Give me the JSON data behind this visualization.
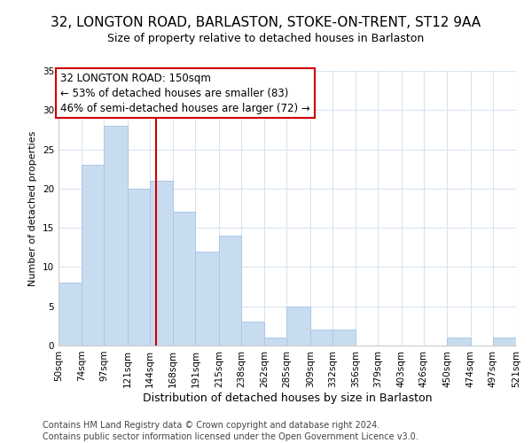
{
  "title": "32, LONGTON ROAD, BARLASTON, STOKE-ON-TRENT, ST12 9AA",
  "subtitle": "Size of property relative to detached houses in Barlaston",
  "xlabel": "Distribution of detached houses by size in Barlaston",
  "ylabel": "Number of detached properties",
  "bar_color": "#c8dcf0",
  "bar_edge_color": "#a8c8e8",
  "vline_x": 150,
  "vline_color": "#cc0000",
  "annotation_lines": [
    "32 LONGTON ROAD: 150sqm",
    "← 53% of detached houses are smaller (83)",
    "46% of semi-detached houses are larger (72) →"
  ],
  "bin_edges": [
    50,
    74,
    97,
    121,
    144,
    168,
    191,
    215,
    238,
    262,
    285,
    309,
    332,
    356,
    379,
    403,
    426,
    450,
    474,
    497,
    521
  ],
  "bin_counts": [
    8,
    23,
    28,
    20,
    21,
    17,
    12,
    14,
    3,
    1,
    5,
    2,
    2,
    0,
    0,
    0,
    0,
    1,
    0,
    1
  ],
  "tick_labels": [
    "50sqm",
    "74sqm",
    "97sqm",
    "121sqm",
    "144sqm",
    "168sqm",
    "191sqm",
    "215sqm",
    "238sqm",
    "262sqm",
    "285sqm",
    "309sqm",
    "332sqm",
    "356sqm",
    "379sqm",
    "403sqm",
    "426sqm",
    "450sqm",
    "474sqm",
    "497sqm",
    "521sqm"
  ],
  "ylim": [
    0,
    35
  ],
  "yticks": [
    0,
    5,
    10,
    15,
    20,
    25,
    30,
    35
  ],
  "footer_line1": "Contains HM Land Registry data © Crown copyright and database right 2024.",
  "footer_line2": "Contains public sector information licensed under the Open Government Licence v3.0.",
  "grid_color": "#d8e4f0",
  "box_edge_color": "#cc0000",
  "title_fontsize": 11,
  "subtitle_fontsize": 9,
  "ylabel_fontsize": 8,
  "xlabel_fontsize": 9,
  "tick_fontsize": 7.5,
  "footer_fontsize": 7,
  "annotation_fontsize": 8.5
}
